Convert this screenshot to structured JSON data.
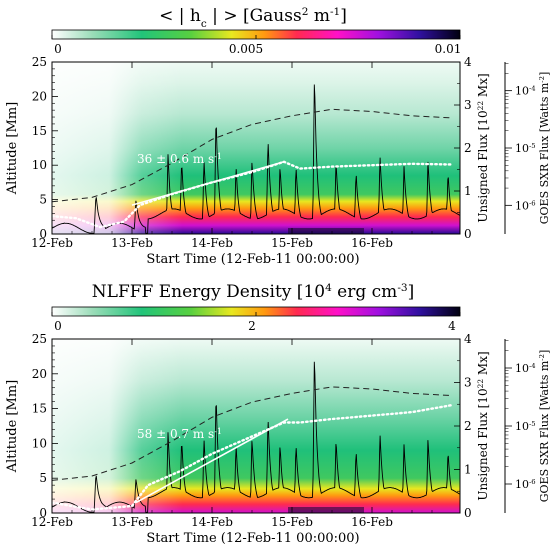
{
  "chart_data": [
    {
      "type": "heatmap",
      "title_parts": [
        "< | h",
        "c",
        " | > [Gauss",
        "2",
        " m",
        "-1",
        "]"
      ],
      "colorbar": {
        "ticks": [
          "0",
          "0.005",
          "0.01"
        ],
        "min": 0,
        "max": 0.01
      },
      "x": {
        "label": "Start Time (12-Feb-11 00:00:00)",
        "ticks": [
          "12-Feb",
          "13-Feb",
          "14-Feb",
          "15-Feb",
          "16-Feb"
        ],
        "tick_days": [
          0,
          1,
          2,
          3,
          4
        ],
        "range_days": [
          0,
          5.1
        ]
      },
      "y_left": {
        "label": "Altitude [Mm]",
        "ticks": [
          "0",
          "5",
          "10",
          "15",
          "20",
          "25"
        ],
        "range": [
          0,
          25
        ]
      },
      "y_right_flux": {
        "label_parts": [
          "Unsigned Flux [10",
          "22",
          " Mx]"
        ],
        "ticks": [
          "0",
          "1",
          "2",
          "3",
          "4"
        ],
        "range": [
          0,
          4
        ]
      },
      "y_far_right_goes": {
        "label_parts": [
          "GOES SXR Flux [Watts m",
          "-2",
          "]"
        ],
        "ticks": [
          {
            "base": "10",
            "exp": "-6",
            "log": -6
          },
          {
            "base": "10",
            "exp": "-5",
            "log": -5
          },
          {
            "base": "10",
            "exp": "-4",
            "log": -4
          }
        ],
        "range_log": [
          -6.5,
          -3.5
        ]
      },
      "annotation": "36 ± 0.6 m s",
      "annotation_sup": "-1",
      "fit_line": {
        "start": [
          1.0,
          4.2
        ],
        "end": [
          2.9,
          10.5
        ]
      },
      "series": {
        "unsigned_flux_dashed": [
          [
            0,
            0.75
          ],
          [
            0.5,
            0.85
          ],
          [
            1.0,
            1.15
          ],
          [
            1.5,
            1.65
          ],
          [
            2.0,
            2.2
          ],
          [
            2.5,
            2.55
          ],
          [
            3.0,
            2.75
          ],
          [
            3.5,
            2.9
          ],
          [
            4.0,
            2.85
          ],
          [
            4.5,
            2.75
          ],
          [
            5.0,
            2.7
          ]
        ],
        "altitude_dotted": [
          [
            0,
            2.6
          ],
          [
            0.3,
            2.3
          ],
          [
            0.6,
            1.0
          ],
          [
            0.9,
            1.8
          ],
          [
            1.1,
            4.2
          ],
          [
            1.5,
            5.8
          ],
          [
            2.0,
            7.5
          ],
          [
            2.5,
            9.0
          ],
          [
            2.9,
            10.5
          ],
          [
            3.1,
            9.5
          ],
          [
            3.5,
            9.8
          ],
          [
            4.0,
            10.0
          ],
          [
            4.5,
            10.2
          ],
          [
            5.0,
            10.1
          ]
        ],
        "goes_flares": [
          {
            "t": 0.15,
            "peak": -6.3
          },
          {
            "t": 0.55,
            "peak": -5.8
          },
          {
            "t": 1.05,
            "peak": -5.9
          },
          {
            "t": 1.45,
            "peak": -5.1
          },
          {
            "t": 1.62,
            "peak": -5.2
          },
          {
            "t": 1.9,
            "peak": -5.2
          },
          {
            "t": 2.05,
            "peak": -4.4
          },
          {
            "t": 2.3,
            "peak": -5.3
          },
          {
            "t": 2.5,
            "peak": -5.2
          },
          {
            "t": 2.7,
            "peak": -4.8
          },
          {
            "t": 2.85,
            "peak": -5.3
          },
          {
            "t": 3.05,
            "peak": -5.3
          },
          {
            "t": 3.28,
            "peak": -3.7
          },
          {
            "t": 3.55,
            "peak": -5.2
          },
          {
            "t": 3.8,
            "peak": -5.4
          },
          {
            "t": 4.1,
            "peak": -5.1
          },
          {
            "t": 4.4,
            "peak": -5.3
          },
          {
            "t": 4.7,
            "peak": -5.2
          },
          {
            "t": 4.95,
            "peak": -5.4
          }
        ]
      }
    },
    {
      "type": "heatmap",
      "title_parts": [
        "NLFFF Energy Density [10",
        "4",
        " erg cm",
        "-3",
        "]"
      ],
      "colorbar": {
        "ticks": [
          "0",
          "2",
          "4"
        ],
        "min": 0,
        "max": 4
      },
      "x": {
        "label": "Start Time (12-Feb-11 00:00:00)",
        "ticks": [
          "12-Feb",
          "13-Feb",
          "14-Feb",
          "15-Feb",
          "16-Feb"
        ],
        "tick_days": [
          0,
          1,
          2,
          3,
          4
        ],
        "range_days": [
          0,
          5.1
        ]
      },
      "y_left": {
        "label": "Altitude [Mm]",
        "ticks": [
          "0",
          "5",
          "10",
          "15",
          "20",
          "25"
        ],
        "range": [
          0,
          25
        ]
      },
      "y_right_flux": {
        "label_parts": [
          "Unsigned Flux [10",
          "22",
          " Mx]"
        ],
        "ticks": [
          "0",
          "1",
          "2",
          "3",
          "4"
        ],
        "range": [
          0,
          4
        ]
      },
      "y_far_right_goes": {
        "label_parts": [
          "GOES SXR Flux [Watts m",
          "-2",
          "]"
        ],
        "ticks": [
          {
            "base": "10",
            "exp": "-6",
            "log": -6
          },
          {
            "base": "10",
            "exp": "-5",
            "log": -5
          },
          {
            "base": "10",
            "exp": "-4",
            "log": -4
          }
        ],
        "range_log": [
          -6.5,
          -3.5
        ]
      },
      "annotation": "58 ± 0.7 m s",
      "annotation_sup": "-1",
      "fit_line": {
        "start": [
          1.05,
          1.5
        ],
        "end": [
          2.95,
          13.5
        ]
      },
      "series": {
        "unsigned_flux_dashed": [
          [
            0,
            0.75
          ],
          [
            0.5,
            0.85
          ],
          [
            1.0,
            1.15
          ],
          [
            1.5,
            1.65
          ],
          [
            2.0,
            2.2
          ],
          [
            2.5,
            2.55
          ],
          [
            3.0,
            2.75
          ],
          [
            3.5,
            2.9
          ],
          [
            4.0,
            2.85
          ],
          [
            4.5,
            2.75
          ],
          [
            5.0,
            2.7
          ]
        ],
        "altitude_dotted": [
          [
            0,
            1.5
          ],
          [
            0.5,
            0.5
          ],
          [
            1.0,
            1.0
          ],
          [
            1.2,
            4.0
          ],
          [
            1.6,
            6.0
          ],
          [
            2.0,
            8.5
          ],
          [
            2.5,
            11.0
          ],
          [
            2.9,
            13.0
          ],
          [
            3.1,
            13.0
          ],
          [
            3.5,
            13.5
          ],
          [
            4.0,
            14.0
          ],
          [
            4.5,
            14.5
          ],
          [
            5.0,
            15.5
          ]
        ],
        "goes_flares": [
          {
            "t": 0.15,
            "peak": -6.3
          },
          {
            "t": 0.55,
            "peak": -5.8
          },
          {
            "t": 1.05,
            "peak": -5.9
          },
          {
            "t": 1.45,
            "peak": -5.1
          },
          {
            "t": 1.62,
            "peak": -5.2
          },
          {
            "t": 1.9,
            "peak": -5.2
          },
          {
            "t": 2.05,
            "peak": -4.4
          },
          {
            "t": 2.3,
            "peak": -5.3
          },
          {
            "t": 2.5,
            "peak": -5.2
          },
          {
            "t": 2.7,
            "peak": -4.8
          },
          {
            "t": 2.85,
            "peak": -5.3
          },
          {
            "t": 3.05,
            "peak": -5.3
          },
          {
            "t": 3.28,
            "peak": -3.7
          },
          {
            "t": 3.55,
            "peak": -5.2
          },
          {
            "t": 3.8,
            "peak": -5.4
          },
          {
            "t": 4.1,
            "peak": -5.1
          },
          {
            "t": 4.4,
            "peak": -5.3
          },
          {
            "t": 4.7,
            "peak": -5.2
          },
          {
            "t": 4.95,
            "peak": -5.4
          }
        ]
      }
    }
  ]
}
